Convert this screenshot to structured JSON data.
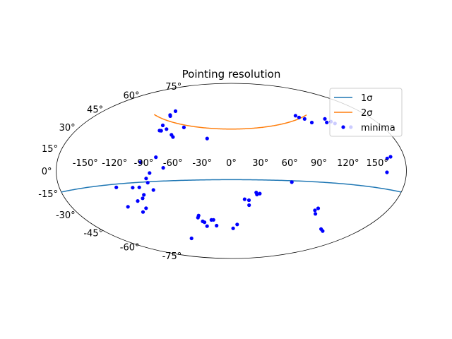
{
  "chart_data": {
    "type": "scatter",
    "projection": "aitoff",
    "title": "Pointing resolution",
    "xlabel": "",
    "ylabel": "",
    "grid": false,
    "legend_placement": "top-right",
    "lon_ticks": [
      {
        "value": -150,
        "label": "-150°"
      },
      {
        "value": -120,
        "label": "-120°"
      },
      {
        "value": -90,
        "label": "-90°"
      },
      {
        "value": -60,
        "label": "-60°"
      },
      {
        "value": -30,
        "label": "-30°"
      },
      {
        "value": 0,
        "label": "0°"
      },
      {
        "value": 30,
        "label": "30°"
      },
      {
        "value": 60,
        "label": "60°"
      },
      {
        "value": 90,
        "label": "90°"
      },
      {
        "value": 120,
        "label": "120°"
      },
      {
        "value": 150,
        "label": "150°"
      }
    ],
    "lat_ticks": [
      {
        "value": 75,
        "label": "75°"
      },
      {
        "value": 60,
        "label": "60°"
      },
      {
        "value": 45,
        "label": "45°"
      },
      {
        "value": 30,
        "label": "30°"
      },
      {
        "value": 15,
        "label": "15°"
      },
      {
        "value": 0,
        "label": "0°"
      },
      {
        "value": -15,
        "label": "-15°"
      },
      {
        "value": -30,
        "label": "-30°"
      },
      {
        "value": -45,
        "label": "-45°"
      },
      {
        "value": -60,
        "label": "-60°"
      },
      {
        "value": -75,
        "label": "-75°"
      }
    ],
    "series": [
      {
        "name": "1σ",
        "type": "line",
        "color": "#1f77b4",
        "lat_at_edge": -14,
        "lat_at_center": -9
      },
      {
        "name": "2σ",
        "type": "line",
        "color": "#ff7f0e",
        "lon_range": [
          -115,
          112
        ],
        "lat_at_center": 43,
        "lat_at_ends": 51
      },
      {
        "name": "minima",
        "type": "scatter",
        "color": "#0000ff",
        "points": [
          [
            -92,
            57
          ],
          [
            -93,
            53
          ],
          [
            -91,
            52
          ],
          [
            -89,
            43
          ],
          [
            -86,
            38
          ],
          [
            -88,
            38
          ],
          [
            -81,
            40
          ],
          [
            -71,
            35
          ],
          [
            -68,
            33
          ],
          [
            -61,
            43
          ],
          [
            -79,
            13
          ],
          [
            -70,
            3
          ],
          [
            -94,
            8
          ],
          [
            -84,
            -2
          ],
          [
            -88,
            -7
          ],
          [
            -87,
            -11
          ],
          [
            -97,
            -15
          ],
          [
            -95,
            -22
          ],
          [
            -83,
            -18
          ],
          [
            -104,
            -15
          ],
          [
            -98,
            -25
          ],
          [
            -105,
            -27
          ],
          [
            -108,
            -37
          ],
          [
            -121,
            -14
          ],
          [
            -120,
            -31
          ],
          [
            -101,
            -34
          ],
          [
            -83,
            -66
          ],
          [
            -45,
            -47
          ],
          [
            -43,
            -45
          ],
          [
            -41,
            -51
          ],
          [
            -39,
            -52
          ],
          [
            -38,
            -56
          ],
          [
            -28,
            -50
          ],
          [
            -25,
            -50
          ],
          [
            -23,
            -56
          ],
          [
            -28,
            33
          ],
          [
            3,
            -59
          ],
          [
            9,
            -55
          ],
          [
            15,
            -29
          ],
          [
            20,
            -30
          ],
          [
            21,
            -35
          ],
          [
            27,
            -22
          ],
          [
            28,
            -24
          ],
          [
            31,
            -23
          ],
          [
            63,
            -11
          ],
          [
            103,
            -34
          ],
          [
            101,
            -36
          ],
          [
            105,
            -39
          ],
          [
            134,
            -50
          ],
          [
            140,
            -51
          ],
          [
            96,
            52
          ],
          [
            98,
            50
          ],
          [
            103,
            48
          ],
          [
            107,
            44
          ],
          [
            133,
            40
          ],
          [
            128,
            45
          ],
          [
            125,
            42
          ],
          [
            131,
            42
          ],
          [
            146,
            35
          ],
          [
            162,
            9
          ],
          [
            166,
            10
          ],
          [
            160,
            -1
          ]
        ]
      }
    ]
  }
}
